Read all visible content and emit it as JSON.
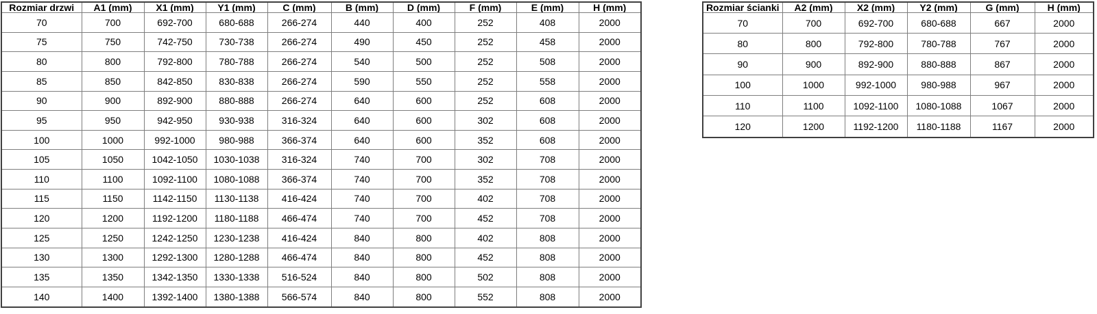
{
  "door_table": {
    "headers": [
      "Rozmiar drzwi",
      "A1 (mm)",
      "X1 (mm)",
      "Y1 (mm)",
      "C (mm)",
      "B (mm)",
      "D (mm)",
      "F (mm)",
      "E (mm)",
      "H (mm)"
    ],
    "rows": [
      [
        "70",
        "700",
        "692-700",
        "680-688",
        "266-274",
        "440",
        "400",
        "252",
        "408",
        "2000"
      ],
      [
        "75",
        "750",
        "742-750",
        "730-738",
        "266-274",
        "490",
        "450",
        "252",
        "458",
        "2000"
      ],
      [
        "80",
        "800",
        "792-800",
        "780-788",
        "266-274",
        "540",
        "500",
        "252",
        "508",
        "2000"
      ],
      [
        "85",
        "850",
        "842-850",
        "830-838",
        "266-274",
        "590",
        "550",
        "252",
        "558",
        "2000"
      ],
      [
        "90",
        "900",
        "892-900",
        "880-888",
        "266-274",
        "640",
        "600",
        "252",
        "608",
        "2000"
      ],
      [
        "95",
        "950",
        "942-950",
        "930-938",
        "316-324",
        "640",
        "600",
        "302",
        "608",
        "2000"
      ],
      [
        "100",
        "1000",
        "992-1000",
        "980-988",
        "366-374",
        "640",
        "600",
        "352",
        "608",
        "2000"
      ],
      [
        "105",
        "1050",
        "1042-1050",
        "1030-1038",
        "316-324",
        "740",
        "700",
        "302",
        "708",
        "2000"
      ],
      [
        "110",
        "1100",
        "1092-1100",
        "1080-1088",
        "366-374",
        "740",
        "700",
        "352",
        "708",
        "2000"
      ],
      [
        "115",
        "1150",
        "1142-1150",
        "1130-1138",
        "416-424",
        "740",
        "700",
        "402",
        "708",
        "2000"
      ],
      [
        "120",
        "1200",
        "1192-1200",
        "1180-1188",
        "466-474",
        "740",
        "700",
        "452",
        "708",
        "2000"
      ],
      [
        "125",
        "1250",
        "1242-1250",
        "1230-1238",
        "416-424",
        "840",
        "800",
        "402",
        "808",
        "2000"
      ],
      [
        "130",
        "1300",
        "1292-1300",
        "1280-1288",
        "466-474",
        "840",
        "800",
        "452",
        "808",
        "2000"
      ],
      [
        "135",
        "1350",
        "1342-1350",
        "1330-1338",
        "516-524",
        "840",
        "800",
        "502",
        "808",
        "2000"
      ],
      [
        "140",
        "1400",
        "1392-1400",
        "1380-1388",
        "566-574",
        "840",
        "800",
        "552",
        "808",
        "2000"
      ]
    ]
  },
  "wall_table": {
    "headers": [
      "Rozmiar ścianki",
      "A2 (mm)",
      "X2 (mm)",
      "Y2 (mm)",
      "G (mm)",
      "H (mm)"
    ],
    "rows": [
      [
        "70",
        "700",
        "692-700",
        "680-688",
        "667",
        "2000"
      ],
      [
        "80",
        "800",
        "792-800",
        "780-788",
        "767",
        "2000"
      ],
      [
        "90",
        "900",
        "892-900",
        "880-888",
        "867",
        "2000"
      ],
      [
        "100",
        "1000",
        "992-1000",
        "980-988",
        "967",
        "2000"
      ],
      [
        "110",
        "1100",
        "1092-1100",
        "1080-1088",
        "1067",
        "2000"
      ],
      [
        "120",
        "1200",
        "1192-1200",
        "1180-1188",
        "1167",
        "2000"
      ]
    ]
  },
  "colors": {
    "background": "#ffffff",
    "text": "#000000",
    "inner_border": "#7d7d7d",
    "outer_border": "#3f3f3f"
  }
}
